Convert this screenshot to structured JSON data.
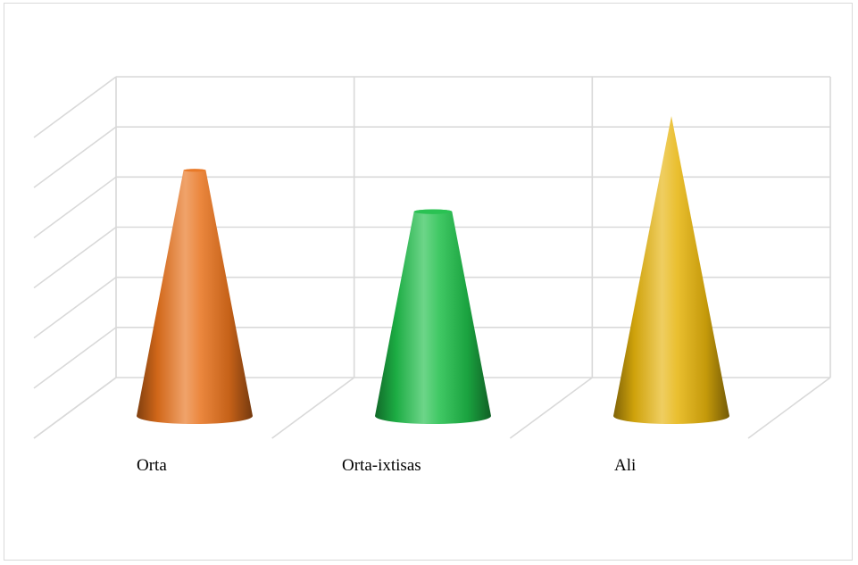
{
  "chart_data": {
    "type": "bar",
    "shape": "cone-3d",
    "categories": [
      "Orta",
      "Orta-ixtisas",
      "Ali"
    ],
    "values": [
      4.75,
      3.95,
      5.8
    ],
    "colors": [
      "#e8721c",
      "#1fbf4a",
      "#e6b40c"
    ],
    "title": "",
    "xlabel": "",
    "ylabel": "",
    "ylim": [
      0,
      6
    ],
    "grid": true,
    "legend": "none"
  }
}
